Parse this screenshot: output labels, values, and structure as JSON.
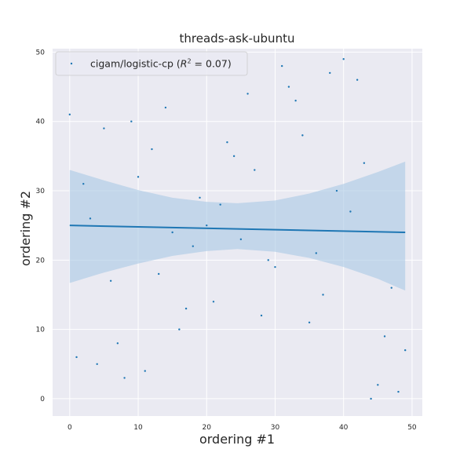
{
  "chart_data": {
    "type": "scatter",
    "title": "threads-ask-ubuntu",
    "xlabel": "ordering #1",
    "ylabel": "ordering #2",
    "xlim": [
      -2.5,
      51.5
    ],
    "ylim": [
      -2.5,
      50.5
    ],
    "xticks": [
      0,
      10,
      20,
      30,
      40,
      50
    ],
    "yticks": [
      0,
      10,
      20,
      30,
      40,
      50
    ],
    "grid": true,
    "legend": {
      "placement": "top-left",
      "label_text": "cigam/logistic-cp (",
      "r2_symbol": "R",
      "r2_exponent": "2",
      "r2_value": " = 0.07)"
    },
    "series": [
      {
        "name": "cigam/logistic-cp (R² = 0.07)",
        "color": "#1f77b4",
        "x": [
          0,
          1,
          2,
          3,
          4,
          5,
          6,
          7,
          8,
          9,
          10,
          11,
          12,
          13,
          14,
          15,
          16,
          17,
          18,
          19,
          20,
          21,
          22,
          23,
          24,
          25,
          26,
          27,
          28,
          29,
          30,
          31,
          32,
          33,
          34,
          35,
          36,
          37,
          38,
          39,
          40,
          41,
          42,
          43,
          44,
          45,
          46,
          47,
          48,
          49
        ],
        "y": [
          41,
          6,
          31,
          26,
          5,
          39,
          17,
          8,
          3,
          40,
          32,
          4,
          36,
          18,
          42,
          24,
          10,
          13,
          22,
          29,
          25,
          14,
          28,
          37,
          35,
          23,
          44,
          33,
          12,
          20,
          19,
          48,
          45,
          43,
          38,
          11,
          21,
          15,
          47,
          30,
          49,
          27,
          46,
          34,
          0,
          2,
          9,
          16,
          1,
          7
        ]
      }
    ],
    "regression": {
      "color": "#1f77b4",
      "band_color": "#a8c8e4",
      "line": {
        "x": [
          0,
          49
        ],
        "y": [
          25.0,
          24.0
        ]
      },
      "band": {
        "x": [
          0,
          5,
          10,
          15,
          20,
          24.5,
          30,
          35,
          40,
          45,
          49
        ],
        "lower": [
          16.7,
          18.2,
          19.5,
          20.6,
          21.3,
          21.6,
          21.2,
          20.3,
          19.0,
          17.3,
          15.6
        ],
        "upper": [
          33.0,
          31.5,
          30.1,
          29.0,
          28.4,
          28.2,
          28.6,
          29.6,
          31.0,
          32.7,
          34.2
        ]
      }
    }
  }
}
